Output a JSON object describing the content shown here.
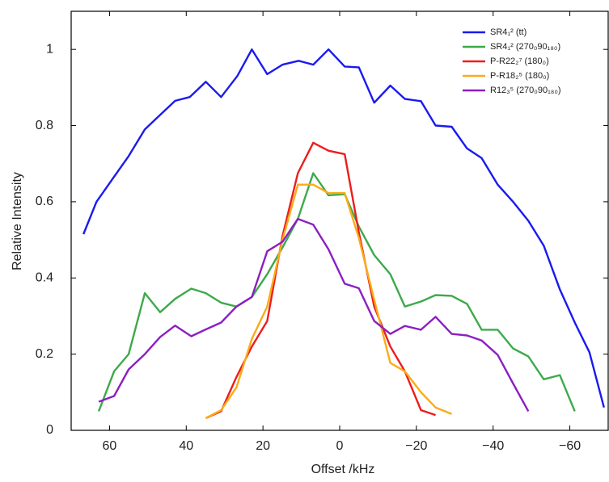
{
  "chart_data": {
    "type": "line",
    "xlabel": "Offset /kHz",
    "ylabel": "Relative Intensity",
    "xlim": [
      70,
      -70
    ],
    "ylim": [
      0,
      1.1
    ],
    "xticks": [
      60,
      40,
      20,
      0,
      {
        "value": -20,
        "label": "−20"
      },
      {
        "value": -40,
        "label": "−40"
      },
      {
        "value": -60,
        "label": "−60"
      }
    ],
    "yticks": [
      0,
      0.2,
      0.4,
      0.6,
      0.8,
      1
    ],
    "legend": "upper right",
    "series": [
      {
        "name": "SR4₁² (tt)",
        "color": "#1a1af0",
        "x": [
          66.8,
          63.4,
          59.2,
          55.0,
          50.8,
          46.6,
          42.9,
          39.1,
          34.9,
          30.9,
          26.7,
          22.9,
          18.9,
          14.9,
          10.7,
          6.9,
          2.9,
          -1.3,
          -5.0,
          -9.0,
          -13.2,
          -17.0,
          -21.2,
          -25.0,
          -29.2,
          -33.2,
          -37.0,
          -41.2,
          -45.2,
          -49.2,
          -53.2,
          -57.4,
          -61.3,
          -65.1,
          -68.9
        ],
        "values": [
          0.515,
          0.6,
          0.66,
          0.72,
          0.79,
          0.83,
          0.865,
          0.875,
          0.915,
          0.875,
          0.93,
          1.0,
          0.935,
          0.96,
          0.97,
          0.96,
          1.0,
          0.955,
          0.953,
          0.86,
          0.905,
          0.87,
          0.864,
          0.8,
          0.797,
          0.74,
          0.715,
          0.645,
          0.6,
          0.55,
          0.485,
          0.37,
          0.283,
          0.205,
          0.06
        ]
      },
      {
        "name": "SR4₁² (270₀90₁₈₀)",
        "color": "#3daa4a",
        "x": [
          62.8,
          58.8,
          55.0,
          50.8,
          46.8,
          42.9,
          38.7,
          34.9,
          30.9,
          26.9,
          22.9,
          18.9,
          14.9,
          10.9,
          6.9,
          2.9,
          -1.3,
          -5.0,
          -9.0,
          -13.2,
          -17.0,
          -21.2,
          -25.0,
          -29.2,
          -33.2,
          -37.0,
          -41.2,
          -45.2,
          -49.2,
          -53.2,
          -57.4,
          -61.3
        ],
        "values": [
          0.05,
          0.155,
          0.2,
          0.36,
          0.31,
          0.345,
          0.372,
          0.36,
          0.335,
          0.325,
          0.35,
          0.41,
          0.48,
          0.555,
          0.675,
          0.617,
          0.62,
          0.535,
          0.46,
          0.41,
          0.325,
          0.338,
          0.355,
          0.353,
          0.332,
          0.264,
          0.264,
          0.215,
          0.194,
          0.134,
          0.145,
          0.05
        ]
      },
      {
        "name": "P-R22₂⁷ (180₀)",
        "color": "#ee1c1c",
        "x": [
          34.9,
          30.9,
          26.9,
          22.9,
          18.9,
          14.9,
          10.9,
          6.9,
          2.9,
          -1.3,
          -5.0,
          -9.0,
          -13.2,
          -17.0,
          -21.2,
          -25.0
        ],
        "values": [
          0.032,
          0.05,
          0.14,
          0.22,
          0.287,
          0.51,
          0.675,
          0.755,
          0.734,
          0.725,
          0.52,
          0.325,
          0.22,
          0.155,
          0.053,
          0.04
        ]
      },
      {
        "name": "P-R18₂⁵ (180₀)",
        "color": "#fbab18",
        "x": [
          34.9,
          30.9,
          26.9,
          22.9,
          18.9,
          14.9,
          10.9,
          6.9,
          2.9,
          -1.3,
          -5.0,
          -9.0,
          -13.2,
          -17.0,
          -21.2,
          -25.0,
          -29.2
        ],
        "values": [
          0.032,
          0.053,
          0.113,
          0.24,
          0.325,
          0.5,
          0.645,
          0.645,
          0.623,
          0.623,
          0.505,
          0.343,
          0.177,
          0.155,
          0.1,
          0.06,
          0.043
        ]
      },
      {
        "name": "R12₃⁵ (270₀90₁₈₀)",
        "color": "#8b1fc2",
        "x": [
          62.8,
          58.8,
          55.0,
          50.8,
          46.8,
          42.9,
          38.7,
          34.9,
          30.9,
          26.9,
          22.9,
          18.9,
          14.9,
          10.9,
          6.9,
          2.9,
          -1.3,
          -5.0,
          -9.0,
          -13.2,
          -17.0,
          -21.2,
          -25.0,
          -29.2,
          -33.2,
          -37.0,
          -41.2,
          -45.2,
          -49.2
        ],
        "values": [
          0.075,
          0.09,
          0.16,
          0.2,
          0.245,
          0.275,
          0.247,
          0.265,
          0.283,
          0.325,
          0.35,
          0.47,
          0.495,
          0.555,
          0.54,
          0.475,
          0.385,
          0.373,
          0.287,
          0.253,
          0.274,
          0.264,
          0.298,
          0.253,
          0.249,
          0.236,
          0.198,
          0.123,
          0.05
        ]
      }
    ]
  }
}
